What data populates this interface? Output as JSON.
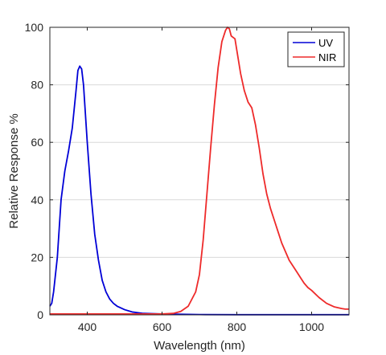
{
  "chart_data": {
    "type": "line",
    "title": "",
    "xlabel": "Wavelength (nm)",
    "ylabel": "Relative Response %",
    "xlim": [
      300,
      1100
    ],
    "ylim": [
      0,
      100
    ],
    "xticks": [
      400,
      600,
      800,
      1000
    ],
    "yticks": [
      0,
      20,
      40,
      60,
      80,
      100
    ],
    "grid": "y-only",
    "legend_position": "top-right",
    "series": [
      {
        "name": "UV",
        "color": "#0000d6",
        "points": [
          [
            300,
            3
          ],
          [
            305,
            4
          ],
          [
            310,
            8
          ],
          [
            320,
            20
          ],
          [
            330,
            40
          ],
          [
            340,
            50
          ],
          [
            350,
            57
          ],
          [
            360,
            65
          ],
          [
            370,
            78
          ],
          [
            375,
            85
          ],
          [
            380,
            86.5
          ],
          [
            385,
            85.5
          ],
          [
            390,
            80
          ],
          [
            400,
            60
          ],
          [
            410,
            42
          ],
          [
            420,
            28
          ],
          [
            430,
            19
          ],
          [
            440,
            12
          ],
          [
            450,
            8
          ],
          [
            460,
            5.5
          ],
          [
            470,
            4
          ],
          [
            480,
            3
          ],
          [
            500,
            1.8
          ],
          [
            520,
            1.0
          ],
          [
            550,
            0.5
          ],
          [
            600,
            0.3
          ],
          [
            700,
            0.1
          ],
          [
            800,
            0.05
          ],
          [
            900,
            0.05
          ],
          [
            1000,
            0.05
          ],
          [
            1100,
            0.05
          ]
        ]
      },
      {
        "name": "NIR",
        "color": "#ee2a2a",
        "points": [
          [
            300,
            0.3
          ],
          [
            400,
            0.3
          ],
          [
            500,
            0.3
          ],
          [
            600,
            0.3
          ],
          [
            630,
            0.5
          ],
          [
            650,
            1.2
          ],
          [
            670,
            3
          ],
          [
            690,
            8
          ],
          [
            700,
            14
          ],
          [
            710,
            26
          ],
          [
            720,
            42
          ],
          [
            730,
            58
          ],
          [
            740,
            73
          ],
          [
            750,
            86
          ],
          [
            760,
            95
          ],
          [
            770,
            99
          ],
          [
            775,
            100
          ],
          [
            780,
            99.5
          ],
          [
            785,
            97
          ],
          [
            790,
            96.5
          ],
          [
            795,
            96
          ],
          [
            800,
            92
          ],
          [
            810,
            84
          ],
          [
            820,
            78
          ],
          [
            830,
            74
          ],
          [
            840,
            72
          ],
          [
            850,
            66
          ],
          [
            860,
            58
          ],
          [
            870,
            49
          ],
          [
            880,
            42
          ],
          [
            890,
            37
          ],
          [
            900,
            33
          ],
          [
            910,
            29
          ],
          [
            920,
            25
          ],
          [
            930,
            22
          ],
          [
            940,
            19
          ],
          [
            950,
            17
          ],
          [
            960,
            15
          ],
          [
            970,
            13
          ],
          [
            980,
            11
          ],
          [
            990,
            9.5
          ],
          [
            1000,
            8.5
          ],
          [
            1020,
            6
          ],
          [
            1040,
            4
          ],
          [
            1060,
            2.8
          ],
          [
            1080,
            2.2
          ],
          [
            1090,
            2.0
          ],
          [
            1100,
            2.0
          ]
        ]
      }
    ]
  }
}
